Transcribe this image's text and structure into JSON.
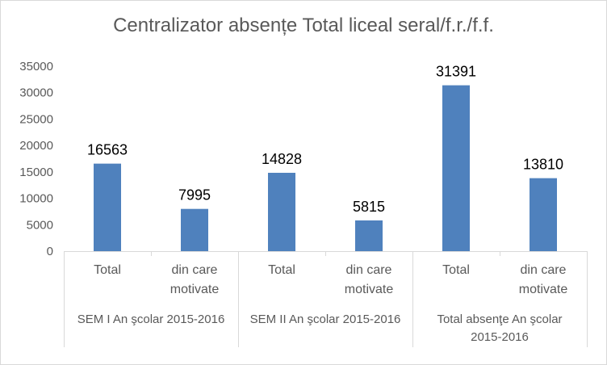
{
  "chart_data": {
    "type": "bar",
    "title": "Centralizator absențe Total liceal seral/f.r./f.f.",
    "categories": [
      "Total",
      "din care motivate",
      "Total",
      "din care motivate",
      "Total",
      "din care motivate"
    ],
    "category_lines": [
      [
        "Total"
      ],
      [
        "din care",
        "motivate"
      ],
      [
        "Total"
      ],
      [
        "din care",
        "motivate"
      ],
      [
        "Total"
      ],
      [
        "din care",
        "motivate"
      ]
    ],
    "groups": [
      {
        "label": "SEM I An şcolar 2015-2016",
        "lines": [
          "SEM I An şcolar 2015-2016"
        ]
      },
      {
        "label": "SEM II An şcolar 2015-2016",
        "lines": [
          "SEM II An şcolar 2015-2016"
        ]
      },
      {
        "label": "Total absenţe An şcolar 2015-2016",
        "lines": [
          "Total absenţe An şcolar",
          "2015-2016"
        ]
      }
    ],
    "values": [
      16563,
      7995,
      14828,
      5815,
      31391,
      13810
    ],
    "data_labels": [
      "16563",
      "7995",
      "14828",
      "5815",
      "31391",
      "13810"
    ],
    "ylim": [
      0,
      35000
    ],
    "yticks": [
      "0",
      "5000",
      "10000",
      "15000",
      "20000",
      "25000",
      "30000",
      "35000"
    ],
    "bar_color": "#4f81bd",
    "grid": false,
    "legend": "none"
  }
}
